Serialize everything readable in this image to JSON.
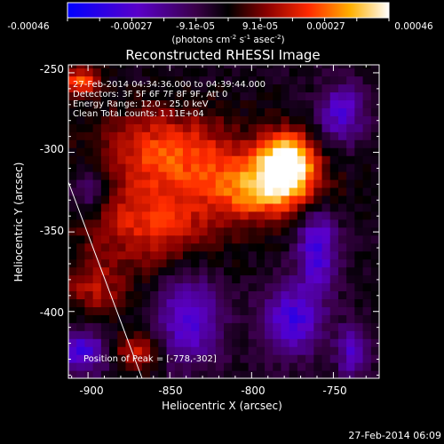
{
  "colorbar": {
    "tick_labels": [
      "-0.00046",
      "-0.00027",
      "-9.1e-05",
      "9.1e-05",
      "0.00027",
      "0.00046"
    ],
    "units_main": "(photons cm",
    "units_exp1": "-2",
    "units_mid": " s",
    "units_exp2": "-1",
    "units_end": " asec",
    "units_exp3": "-2",
    "units_close": ")",
    "colors": [
      "#0000ff",
      "#5a00c8",
      "#3a0048",
      "#000000",
      "#8a0000",
      "#ff2a00",
      "#ffb000",
      "#ffffff"
    ]
  },
  "plot": {
    "title": "Reconstructed RHESSI Image",
    "xlabel": "Heliocentric X (arcsec)",
    "ylabel": "Heliocentric Y (arcsec)",
    "x_ticks": [
      "-900",
      "-850",
      "-800",
      "-750"
    ],
    "y_ticks": [
      "-250",
      "-300",
      "-350",
      "-400"
    ],
    "info_lines": [
      "27-Feb-2014 04:34:36.000 to 04:39:44.000",
      "Detectors: 3F 5F 6F 7F 8F 9F, Att 0",
      "Energy Range: 12.0 - 25.0 keV",
      "Clean     Total counts: 1.11E+04"
    ],
    "peak_label": "Position of Peak = [-778,-302]",
    "timestamp": "27-Feb-2014 06:09"
  },
  "chart_data": {
    "type": "heatmap",
    "title": "Reconstructed RHESSI Image",
    "xlabel": "Heliocentric X (arcsec)",
    "ylabel": "Heliocentric Y (arcsec)",
    "xlim": [
      -912,
      -722
    ],
    "ylim": [
      -442,
      -245
    ],
    "colorbar_range": [
      -0.00046,
      0.00046
    ],
    "colorbar_ticks": [
      -0.00046,
      -0.00027,
      -9.1e-05,
      9.1e-05,
      0.00027,
      0.00046
    ],
    "peak": [
      -778,
      -302
    ],
    "limb_line": [
      [
        -912,
        -320
      ],
      [
        -862,
        -442
      ]
    ]
  }
}
